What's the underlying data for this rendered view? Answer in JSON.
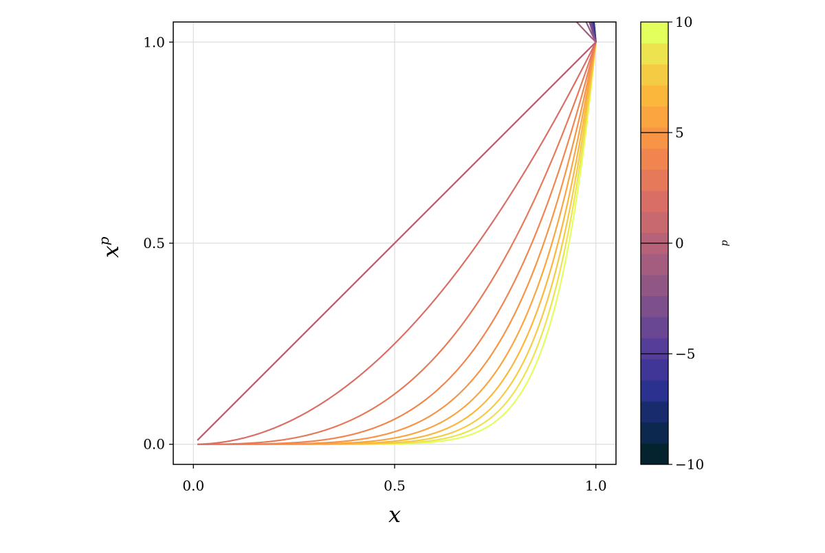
{
  "chart_data": {
    "type": "line",
    "xlabel": "x",
    "ylabel_base": "x",
    "ylabel_exponent": "p",
    "xlim": [
      -0.05,
      1.05
    ],
    "ylim": [
      -0.05,
      1.05
    ],
    "grid": true,
    "x_ticks": [
      0.0,
      0.5,
      1.0
    ],
    "x_tick_labels": [
      "0.0",
      "0.5",
      "1.0"
    ],
    "y_ticks": [
      0.0,
      0.5,
      1.0
    ],
    "y_tick_labels": [
      "0.0",
      "0.5",
      "1.0"
    ],
    "function": "y = x^p",
    "x_domain": [
      0.01,
      1.0
    ],
    "parameter_name": "p",
    "parameter_values": [
      -10,
      -9,
      -8,
      -7,
      -6,
      -5,
      -4,
      -3,
      -2,
      -1,
      0,
      1,
      2,
      3,
      4,
      5,
      6,
      7,
      8,
      9,
      10
    ],
    "colorbar": {
      "label": "p",
      "range": [
        -10,
        10
      ],
      "levels": 21,
      "ticks": [
        -10,
        -5,
        0,
        5,
        10
      ],
      "tick_labels": [
        "−10",
        "−5",
        "0",
        "5",
        "10"
      ],
      "colormap": "thermal"
    }
  },
  "colormap_stops": [
    "#04232f",
    "#102a5e",
    "#2c3191",
    "#4c3a9c",
    "#6d4891",
    "#8a5586",
    "#a85d7e",
    "#c46671",
    "#de7063",
    "#f08350",
    "#f99a42",
    "#fbb53b",
    "#f3d448",
    "#e2ff5c"
  ]
}
